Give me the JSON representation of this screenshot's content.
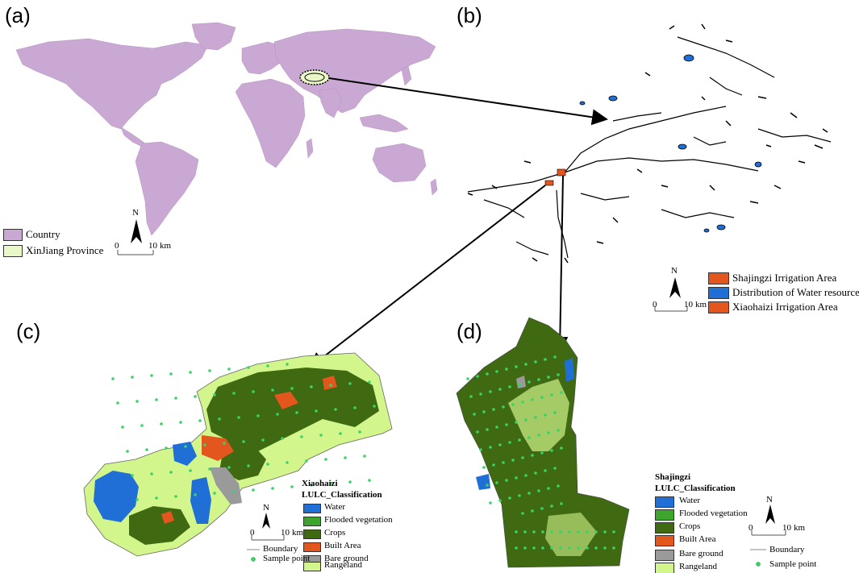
{
  "panels": {
    "a": {
      "label": "(a)",
      "legend": [
        {
          "label": "Country",
          "color": "#c9a9d3"
        },
        {
          "label": "XinJiang Province",
          "color": "#eaf7c9"
        }
      ],
      "north": "N",
      "scale_start": "0",
      "scale_end": "10",
      "scale_unit": "km"
    },
    "b": {
      "label": "(b)",
      "legend": [
        {
          "label": "Shajingzi Irrigation Area",
          "color": "#e3561d"
        },
        {
          "label": "Distribution of Water resources",
          "color": "#1f6fd6"
        },
        {
          "label": "Xiaohaizi Irrigation Area",
          "color": "#e3561d"
        }
      ],
      "north": "N",
      "scale_start": "0",
      "scale_end": "10",
      "scale_unit": "km"
    },
    "c": {
      "label": "(c)",
      "legend_title_1": "Xiaohaizi",
      "legend_title_2": "LULC_Classification",
      "classes": [
        {
          "label": "Water",
          "color": "#1f6fd6"
        },
        {
          "label": "Flooded vegetation",
          "color": "#3da52e"
        },
        {
          "label": "Crops",
          "color": "#3f6a12"
        },
        {
          "label": "Built Area",
          "color": "#e3561d"
        },
        {
          "label": "Bare ground",
          "color": "#9a9a9a"
        },
        {
          "label": "Rangeland",
          "color": "#d2f58c"
        }
      ],
      "boundary_label": "Boundary",
      "sample_label": "Sample point",
      "north": "N",
      "scale_start": "0",
      "scale_end": "10",
      "scale_unit": "km"
    },
    "d": {
      "label": "(d)",
      "legend_title_1": "Shajingzi",
      "legend_title_2": "LULC_Classification",
      "classes": [
        {
          "label": "Water",
          "color": "#1f6fd6"
        },
        {
          "label": "Flooded vegetation",
          "color": "#3da52e"
        },
        {
          "label": "Crops",
          "color": "#3f6a12"
        },
        {
          "label": "Built Area",
          "color": "#e3561d"
        },
        {
          "label": "Bare ground",
          "color": "#9a9a9a"
        },
        {
          "label": "Rangeland",
          "color": "#d2f58c"
        }
      ],
      "boundary_label": "Boundary",
      "sample_label": "Sample point",
      "north": "N",
      "scale_start": "0",
      "scale_end": "10",
      "scale_unit": "km"
    }
  },
  "colors": {
    "country": "#c9a9d3",
    "water": "#1f6fd6",
    "crops": "#3f6a12",
    "rangeland": "#d2f58c",
    "built": "#e3561d",
    "bare": "#9a9a9a",
    "sample": "#38d46a"
  }
}
